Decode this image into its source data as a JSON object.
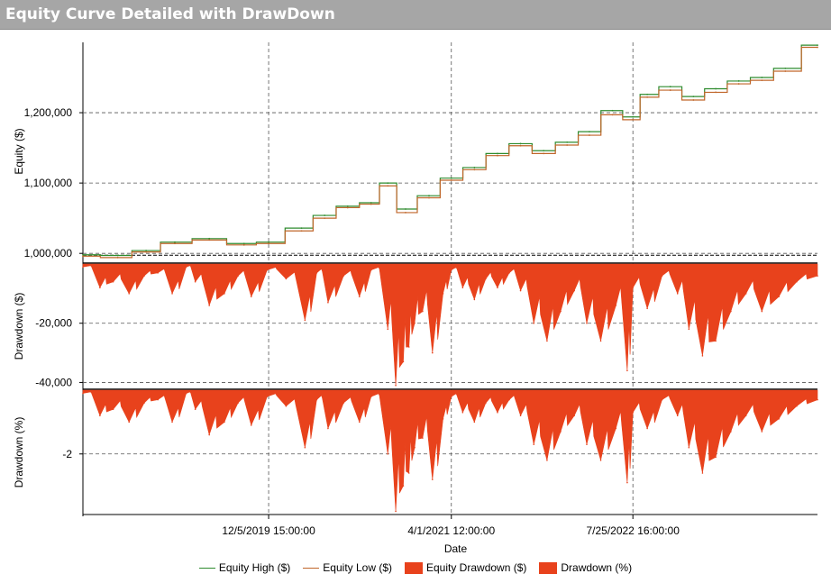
{
  "window": {
    "title": "Equity Curve Detailed with DrawDown"
  },
  "colors": {
    "title_bar": "#a6a6a6",
    "equity_high": "#2e8b2e",
    "equity_low": "#c0662a",
    "drawdown_fill": "#e8421c",
    "gridline": "#555555"
  },
  "chart_data": [
    {
      "type": "line",
      "ylabel": "Equity ($)",
      "yticks": [
        "1,000,000",
        "1,100,000",
        "1,200,000"
      ],
      "ylim": [
        990000,
        1300000
      ],
      "xlim": [
        "2018-08-01",
        "2023-11-25"
      ],
      "grid": true,
      "series": [
        {
          "name": "Equity High ($)",
          "color": "#2e8b2e",
          "x": [
            "2018-08-01",
            "2018-11-01",
            "2019-01-15",
            "2019-04-01",
            "2019-07-01",
            "2019-10-01",
            "2019-12-05",
            "2020-03-01",
            "2020-05-01",
            "2020-07-01",
            "2020-09-01",
            "2020-10-15",
            "2020-12-01",
            "2021-02-01",
            "2021-04-01",
            "2021-06-01",
            "2021-08-01",
            "2021-10-01",
            "2021-12-01",
            "2022-02-01",
            "2022-04-01",
            "2022-06-01",
            "2022-07-25",
            "2022-09-01",
            "2022-11-01",
            "2023-01-01",
            "2023-03-01",
            "2023-05-01",
            "2023-07-01",
            "2023-09-01",
            "2023-11-25"
          ],
          "values": [
            998000,
            997000,
            1004000,
            1016000,
            1021000,
            1014000,
            1016000,
            1036000,
            1054000,
            1067000,
            1072000,
            1100000,
            1063000,
            1082000,
            1107000,
            1122000,
            1142000,
            1156000,
            1146000,
            1158000,
            1173000,
            1203000,
            1194000,
            1226000,
            1237000,
            1223000,
            1234000,
            1245000,
            1250000,
            1263000,
            1296000
          ]
        },
        {
          "name": "Equity Low ($)",
          "color": "#c0662a",
          "x": [
            "2018-08-01",
            "2018-11-01",
            "2019-01-15",
            "2019-04-01",
            "2019-07-01",
            "2019-10-01",
            "2019-12-05",
            "2020-03-01",
            "2020-05-01",
            "2020-07-01",
            "2020-09-01",
            "2020-10-15",
            "2020-12-01",
            "2021-02-01",
            "2021-04-01",
            "2021-06-01",
            "2021-08-01",
            "2021-10-01",
            "2021-12-01",
            "2022-02-01",
            "2022-04-01",
            "2022-06-01",
            "2022-07-25",
            "2022-09-01",
            "2022-11-01",
            "2023-01-01",
            "2023-03-01",
            "2023-05-01",
            "2023-07-01",
            "2023-09-01",
            "2023-11-25"
          ],
          "values": [
            996000,
            994000,
            1002000,
            1014000,
            1019000,
            1012000,
            1014000,
            1032000,
            1050000,
            1065000,
            1070000,
            1096000,
            1058000,
            1079000,
            1104000,
            1119000,
            1139000,
            1153000,
            1142000,
            1154000,
            1168000,
            1197000,
            1190000,
            1222000,
            1232000,
            1218000,
            1229000,
            1241000,
            1246000,
            1259000,
            1293000
          ]
        }
      ]
    },
    {
      "type": "area",
      "ylabel": "Drawdown ($)",
      "yticks": [
        "-20,000",
        "-40,000"
      ],
      "ylim": [
        -42000,
        0
      ],
      "grid": true,
      "series": [
        {
          "name": "Equity Drawdown ($)",
          "color": "#e8421c",
          "x": [
            "2018-08-01",
            "2018-09-15",
            "2018-10-20",
            "2018-12-01",
            "2019-01-10",
            "2019-02-15",
            "2019-03-25",
            "2019-05-01",
            "2019-05-25",
            "2019-07-01",
            "2019-08-10",
            "2019-09-15",
            "2019-10-20",
            "2019-12-01",
            "2020-01-20",
            "2020-03-10",
            "2020-04-10",
            "2020-05-10",
            "2020-06-20",
            "2020-08-01",
            "2020-09-01",
            "2020-10-15",
            "2020-11-05",
            "2020-11-25",
            "2020-12-10",
            "2020-12-25",
            "2021-01-15",
            "2021-02-10",
            "2021-03-10",
            "2021-04-01",
            "2021-05-01",
            "2021-06-01",
            "2021-07-01",
            "2021-08-01",
            "2021-09-01",
            "2021-10-01",
            "2021-11-05",
            "2021-12-10",
            "2022-01-15",
            "2022-02-20",
            "2022-03-25",
            "2022-05-01",
            "2022-06-10",
            "2022-07-10",
            "2022-07-25",
            "2022-09-01",
            "2022-10-10",
            "2022-11-20",
            "2022-12-20",
            "2023-01-25",
            "2023-03-01",
            "2023-04-10",
            "2023-05-20",
            "2023-07-01",
            "2023-08-15",
            "2023-10-01",
            "2023-11-25"
          ],
          "values": [
            -1000,
            -8000,
            -6000,
            -10000,
            -4000,
            -3000,
            -10000,
            -1000,
            -6000,
            -14000,
            -10000,
            -4000,
            -11000,
            -2000,
            -5000,
            -19000,
            -3000,
            -13000,
            -4000,
            -11000,
            -2000,
            -22000,
            -41000,
            -33000,
            -28000,
            -20000,
            -16000,
            -30000,
            -10000,
            -2000,
            -8000,
            -12000,
            -5000,
            -8000,
            -3000,
            -9000,
            -20000,
            -26000,
            -16000,
            -9000,
            -20000,
            -26000,
            -14000,
            -36000,
            -8000,
            -15000,
            -4000,
            -10000,
            -22000,
            -31000,
            -26000,
            -16000,
            -10000,
            -16000,
            -11000,
            -6000,
            -4000
          ]
        }
      ]
    },
    {
      "type": "area",
      "ylabel": "Drawdown (%)",
      "yticks": [
        "-2"
      ],
      "ylim": [
        -3.9,
        0
      ],
      "xlabel": "Date",
      "xticks": [
        "12/5/2019 15:00:00",
        "4/1/2021 12:00:00",
        "7/25/2022 16:00:00"
      ],
      "grid": true,
      "series": [
        {
          "name": "Drawdown (%)",
          "color": "#e8421c",
          "x": [
            "2018-08-01",
            "2018-09-15",
            "2018-10-20",
            "2018-12-01",
            "2019-01-10",
            "2019-02-15",
            "2019-03-25",
            "2019-05-01",
            "2019-05-25",
            "2019-07-01",
            "2019-08-10",
            "2019-09-15",
            "2019-10-20",
            "2019-12-01",
            "2020-01-20",
            "2020-03-10",
            "2020-04-10",
            "2020-05-10",
            "2020-06-20",
            "2020-08-01",
            "2020-09-01",
            "2020-10-15",
            "2020-11-05",
            "2020-11-25",
            "2020-12-10",
            "2020-12-25",
            "2021-01-15",
            "2021-02-10",
            "2021-03-10",
            "2021-04-01",
            "2021-05-01",
            "2021-06-01",
            "2021-07-01",
            "2021-08-01",
            "2021-09-01",
            "2021-10-01",
            "2021-11-05",
            "2021-12-10",
            "2022-01-15",
            "2022-02-20",
            "2022-03-25",
            "2022-05-01",
            "2022-06-10",
            "2022-07-10",
            "2022-07-25",
            "2022-09-01",
            "2022-10-10",
            "2022-11-20",
            "2022-12-20",
            "2023-01-25",
            "2023-03-01",
            "2023-04-10",
            "2023-05-20",
            "2023-07-01",
            "2023-08-15",
            "2023-10-01",
            "2023-11-25"
          ],
          "values": [
            -0.1,
            -0.8,
            -0.6,
            -1.0,
            -0.4,
            -0.3,
            -1.0,
            -0.1,
            -0.6,
            -1.4,
            -1.0,
            -0.4,
            -1.1,
            -0.2,
            -0.5,
            -1.8,
            -0.3,
            -1.2,
            -0.4,
            -1.0,
            -0.2,
            -2.0,
            -3.8,
            -3.0,
            -2.6,
            -1.8,
            -1.5,
            -2.8,
            -0.9,
            -0.2,
            -0.7,
            -1.0,
            -0.4,
            -0.7,
            -0.3,
            -0.8,
            -1.7,
            -2.2,
            -1.3,
            -0.8,
            -1.7,
            -2.2,
            -1.2,
            -2.9,
            -0.7,
            -1.2,
            -0.3,
            -0.8,
            -1.8,
            -2.6,
            -2.1,
            -1.3,
            -0.8,
            -1.3,
            -0.9,
            -0.5,
            -0.3
          ]
        }
      ]
    }
  ],
  "legend": {
    "items": [
      {
        "label": "Equity High ($)",
        "kind": "line",
        "color": "#2e8b2e"
      },
      {
        "label": "Equity Low ($)",
        "kind": "line",
        "color": "#c0662a"
      },
      {
        "label": "Equity Drawdown ($)",
        "kind": "box",
        "color": "#e8421c"
      },
      {
        "label": "Drawdown (%)",
        "kind": "box",
        "color": "#e8421c"
      }
    ]
  }
}
